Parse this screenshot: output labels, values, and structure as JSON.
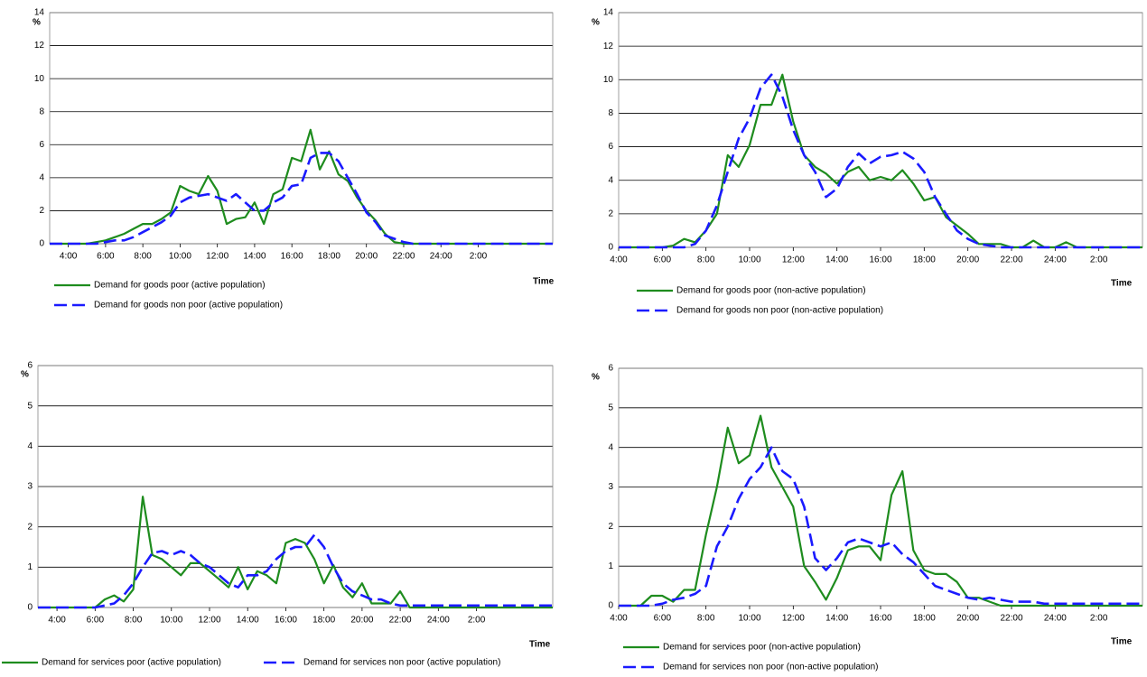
{
  "chart_data": [
    {
      "type": "line",
      "ylabel": "%",
      "xlabel": "Time",
      "x": [
        3,
        3.5,
        4,
        4.5,
        5,
        5.5,
        6,
        6.5,
        7,
        7.5,
        8,
        8.5,
        9,
        9.5,
        10,
        10.5,
        11,
        11.5,
        12,
        12.5,
        13,
        13.5,
        14,
        14.5,
        15,
        15.5,
        16,
        16.5,
        17,
        17.5,
        18,
        18.5,
        19,
        19.5,
        20,
        20.5,
        21,
        21.5,
        22,
        22.5,
        23,
        23.5,
        24,
        24.5,
        25,
        25.5,
        26,
        26.5,
        27,
        27.5,
        28,
        28.5,
        29,
        29.5,
        30
      ],
      "xlim": [
        3,
        30
      ],
      "xticks": [
        {
          "value": 4,
          "label": "4:00"
        },
        {
          "value": 6,
          "label": "6:00"
        },
        {
          "value": 8,
          "label": "8:00"
        },
        {
          "value": 10,
          "label": "10:00"
        },
        {
          "value": 12,
          "label": "12:00"
        },
        {
          "value": 14,
          "label": "14:00"
        },
        {
          "value": 16,
          "label": "16:00"
        },
        {
          "value": 18,
          "label": "18:00"
        },
        {
          "value": 20,
          "label": "20:00"
        },
        {
          "value": 22,
          "label": "22:00"
        },
        {
          "value": 24,
          "label": "24:00"
        },
        {
          "value": 26,
          "label": "2:00"
        }
      ],
      "ylim": [
        0,
        14
      ],
      "yticks": [
        0,
        2,
        4,
        6,
        8,
        10,
        12,
        14
      ],
      "grid": true,
      "series": [
        {
          "name": "Demand for goods poor (active population)",
          "color": "#1e8c1e",
          "dash": false,
          "values": [
            0,
            0,
            0,
            0,
            0,
            0.1,
            0.2,
            0.4,
            0.6,
            0.9,
            1.2,
            1.2,
            1.5,
            1.9,
            3.5,
            3.2,
            3.0,
            4.1,
            3.2,
            1.2,
            1.5,
            1.6,
            2.5,
            1.2,
            3.0,
            3.3,
            5.2,
            5.0,
            6.9,
            4.5,
            5.6,
            4.2,
            3.8,
            2.8,
            2.0,
            1.4,
            0.6,
            0.1,
            0,
            0,
            0,
            0,
            0,
            0,
            0,
            0,
            0,
            0,
            0,
            0,
            0,
            0,
            0,
            0,
            0
          ]
        },
        {
          "name": "Demand for goods non poor (active population)",
          "color": "#1a1aff",
          "dash": true,
          "values": [
            0,
            0,
            0,
            0,
            0,
            0,
            0.1,
            0.2,
            0.2,
            0.4,
            0.7,
            1.0,
            1.3,
            1.7,
            2.5,
            2.8,
            2.9,
            3.0,
            2.8,
            2.6,
            3.0,
            2.5,
            2.0,
            2.0,
            2.5,
            2.8,
            3.5,
            3.6,
            5.2,
            5.5,
            5.5,
            5.0,
            4.0,
            3.0,
            1.9,
            1.3,
            0.5,
            0.3,
            0.1,
            0,
            0,
            0,
            0,
            0,
            0,
            0,
            0,
            0,
            0,
            0,
            0,
            0,
            0,
            0,
            0
          ]
        }
      ]
    },
    {
      "type": "line",
      "ylabel": "%",
      "xlabel": "Time",
      "x": [
        4,
        4.5,
        5,
        5.5,
        6,
        6.5,
        7,
        7.5,
        8,
        8.5,
        9,
        9.5,
        10,
        10.5,
        11,
        11.5,
        12,
        12.5,
        13,
        13.5,
        14,
        14.5,
        15,
        15.5,
        16,
        16.5,
        17,
        17.5,
        18,
        18.5,
        19,
        19.5,
        20,
        20.5,
        21,
        21.5,
        22,
        22.5,
        23,
        23.5,
        24,
        24.5,
        25,
        25.5,
        26,
        26.5,
        27,
        27.5,
        28
      ],
      "xlim": [
        4,
        28
      ],
      "xticks": [
        {
          "value": 4,
          "label": "4:00"
        },
        {
          "value": 6,
          "label": "6:00"
        },
        {
          "value": 8,
          "label": "8:00"
        },
        {
          "value": 10,
          "label": "10:00"
        },
        {
          "value": 12,
          "label": "12:00"
        },
        {
          "value": 14,
          "label": "14:00"
        },
        {
          "value": 16,
          "label": "16:00"
        },
        {
          "value": 18,
          "label": "18:00"
        },
        {
          "value": 20,
          "label": "20:00"
        },
        {
          "value": 22,
          "label": "22:00"
        },
        {
          "value": 24,
          "label": "24:00"
        },
        {
          "value": 26,
          "label": "2:00"
        }
      ],
      "ylim": [
        0,
        14
      ],
      "yticks": [
        0,
        2,
        4,
        6,
        8,
        10,
        12,
        14
      ],
      "grid": true,
      "series": [
        {
          "name": "Demand for goods poor (non-active population)",
          "color": "#1e8c1e",
          "dash": false,
          "values": [
            0,
            0,
            0,
            0,
            0,
            0.1,
            0.5,
            0.3,
            1.0,
            2.0,
            5.5,
            4.8,
            6.1,
            8.5,
            8.5,
            10.3,
            7.5,
            5.5,
            4.8,
            4.4,
            3.8,
            4.5,
            4.8,
            4.0,
            4.2,
            4.0,
            4.6,
            3.8,
            2.8,
            3.0,
            1.8,
            1.3,
            0.8,
            0.2,
            0.2,
            0.2,
            0,
            0,
            0.4,
            0,
            0,
            0.3,
            0,
            0,
            0,
            0,
            0,
            0,
            0
          ]
        },
        {
          "name": "Demand for goods non poor (non-active population)",
          "color": "#1a1aff",
          "dash": true,
          "values": [
            0,
            0,
            0,
            0,
            0,
            0,
            0,
            0.2,
            1.0,
            2.5,
            4.5,
            6.5,
            7.7,
            9.5,
            10.3,
            9.0,
            7.0,
            5.5,
            4.5,
            3.0,
            3.5,
            4.8,
            5.6,
            5.0,
            5.4,
            5.5,
            5.7,
            5.3,
            4.5,
            3.0,
            2.0,
            1.0,
            0.5,
            0.2,
            0.1,
            0,
            0,
            0,
            0,
            0,
            0,
            0,
            0,
            0,
            0,
            0,
            0,
            0,
            0
          ]
        }
      ]
    },
    {
      "type": "line",
      "ylabel": "%",
      "xlabel": "Time",
      "x": [
        3,
        3.5,
        4,
        4.5,
        5,
        5.5,
        6,
        6.5,
        7,
        7.5,
        8,
        8.5,
        9,
        9.5,
        10,
        10.5,
        11,
        11.5,
        12,
        12.5,
        13,
        13.5,
        14,
        14.5,
        15,
        15.5,
        16,
        16.5,
        17,
        17.5,
        18,
        18.5,
        19,
        19.5,
        20,
        20.5,
        21,
        21.5,
        22,
        22.5,
        23,
        23.5,
        24,
        24.5,
        25,
        25.5,
        26,
        26.5,
        27,
        27.5,
        28,
        28.5,
        29,
        29.5,
        30
      ],
      "xlim": [
        3,
        30
      ],
      "xticks": [
        {
          "value": 4,
          "label": "4:00"
        },
        {
          "value": 6,
          "label": "6:00"
        },
        {
          "value": 8,
          "label": "8:00"
        },
        {
          "value": 10,
          "label": "10:00"
        },
        {
          "value": 12,
          "label": "12:00"
        },
        {
          "value": 14,
          "label": "14:00"
        },
        {
          "value": 16,
          "label": "16:00"
        },
        {
          "value": 18,
          "label": "18:00"
        },
        {
          "value": 20,
          "label": "20:00"
        },
        {
          "value": 22,
          "label": "22:00"
        },
        {
          "value": 24,
          "label": "24:00"
        },
        {
          "value": 26,
          "label": "2:00"
        }
      ],
      "ylim": [
        0,
        6
      ],
      "yticks": [
        0,
        1,
        2,
        3,
        4,
        5,
        6
      ],
      "grid": true,
      "series": [
        {
          "name": "Demand for services poor (active population)",
          "color": "#1e8c1e",
          "dash": false,
          "values": [
            0,
            0,
            0,
            0,
            0,
            0,
            0,
            0.2,
            0.3,
            0.15,
            0.45,
            2.75,
            1.3,
            1.2,
            1.0,
            0.8,
            1.1,
            1.1,
            0.9,
            0.7,
            0.5,
            1.0,
            0.45,
            0.9,
            0.8,
            0.6,
            1.6,
            1.7,
            1.6,
            1.2,
            0.6,
            1.05,
            0.5,
            0.25,
            0.6,
            0.1,
            0.1,
            0.1,
            0.4,
            0,
            0,
            0,
            0,
            0,
            0,
            0,
            0,
            0,
            0,
            0,
            0,
            0,
            0,
            0,
            0
          ]
        },
        {
          "name": "Demand for services non poor (active population)",
          "color": "#1a1aff",
          "dash": true,
          "values": [
            0,
            0,
            0,
            0,
            0,
            0,
            0,
            0.05,
            0.1,
            0.3,
            0.6,
            1.0,
            1.35,
            1.4,
            1.3,
            1.4,
            1.3,
            1.1,
            1.0,
            0.8,
            0.6,
            0.5,
            0.8,
            0.8,
            0.9,
            1.2,
            1.4,
            1.5,
            1.5,
            1.8,
            1.5,
            1.0,
            0.6,
            0.4,
            0.3,
            0.2,
            0.2,
            0.1,
            0.05,
            0.05,
            0.05,
            0.05,
            0.05,
            0.05,
            0.05,
            0.05,
            0.05,
            0.05,
            0.05,
            0.05,
            0.05,
            0.05,
            0.05,
            0.05,
            0.05
          ]
        }
      ]
    },
    {
      "type": "line",
      "ylabel": "%",
      "xlabel": "Time",
      "x": [
        4,
        4.5,
        5,
        5.5,
        6,
        6.5,
        7,
        7.5,
        8,
        8.5,
        9,
        9.5,
        10,
        10.5,
        11,
        11.5,
        12,
        12.5,
        13,
        13.5,
        14,
        14.5,
        15,
        15.5,
        16,
        16.5,
        17,
        17.5,
        18,
        18.5,
        19,
        19.5,
        20,
        20.5,
        21,
        21.5,
        22,
        22.5,
        23,
        23.5,
        24,
        24.5,
        25,
        25.5,
        26,
        26.5,
        27,
        27.5,
        28
      ],
      "xlim": [
        4,
        28
      ],
      "xticks": [
        {
          "value": 4,
          "label": "4:00"
        },
        {
          "value": 6,
          "label": "6:00"
        },
        {
          "value": 8,
          "label": "8:00"
        },
        {
          "value": 10,
          "label": "10:00"
        },
        {
          "value": 12,
          "label": "12:00"
        },
        {
          "value": 14,
          "label": "14:00"
        },
        {
          "value": 16,
          "label": "16:00"
        },
        {
          "value": 18,
          "label": "18:00"
        },
        {
          "value": 20,
          "label": "20:00"
        },
        {
          "value": 22,
          "label": "22:00"
        },
        {
          "value": 24,
          "label": "24:00"
        },
        {
          "value": 26,
          "label": "2:00"
        }
      ],
      "ylim": [
        0,
        6
      ],
      "yticks": [
        0,
        1,
        2,
        3,
        4,
        5,
        6
      ],
      "grid": true,
      "series": [
        {
          "name": "Demand for services poor (non-active population)",
          "color": "#1e8c1e",
          "dash": false,
          "values": [
            0,
            0,
            0,
            0.25,
            0.25,
            0.1,
            0.4,
            0.4,
            1.8,
            3.0,
            4.5,
            3.6,
            3.8,
            4.8,
            3.5,
            3.0,
            2.5,
            1.0,
            0.6,
            0.15,
            0.7,
            1.4,
            1.5,
            1.5,
            1.15,
            2.8,
            3.4,
            1.4,
            0.9,
            0.8,
            0.8,
            0.6,
            0.2,
            0.2,
            0.1,
            0,
            0,
            0,
            0,
            0,
            0,
            0,
            0,
            0,
            0,
            0,
            0,
            0,
            0
          ]
        },
        {
          "name": "Demand for services non poor (non-active population)",
          "color": "#1a1aff",
          "dash": true,
          "values": [
            0,
            0,
            0,
            0,
            0.05,
            0.15,
            0.2,
            0.3,
            0.5,
            1.5,
            2.0,
            2.7,
            3.2,
            3.5,
            4.0,
            3.4,
            3.2,
            2.5,
            1.2,
            0.9,
            1.2,
            1.6,
            1.7,
            1.6,
            1.5,
            1.6,
            1.3,
            1.1,
            0.8,
            0.5,
            0.4,
            0.3,
            0.2,
            0.15,
            0.2,
            0.15,
            0.1,
            0.1,
            0.1,
            0.05,
            0.05,
            0.05,
            0.05,
            0.05,
            0.05,
            0.05,
            0.05,
            0.05,
            0.05
          ]
        }
      ]
    }
  ]
}
